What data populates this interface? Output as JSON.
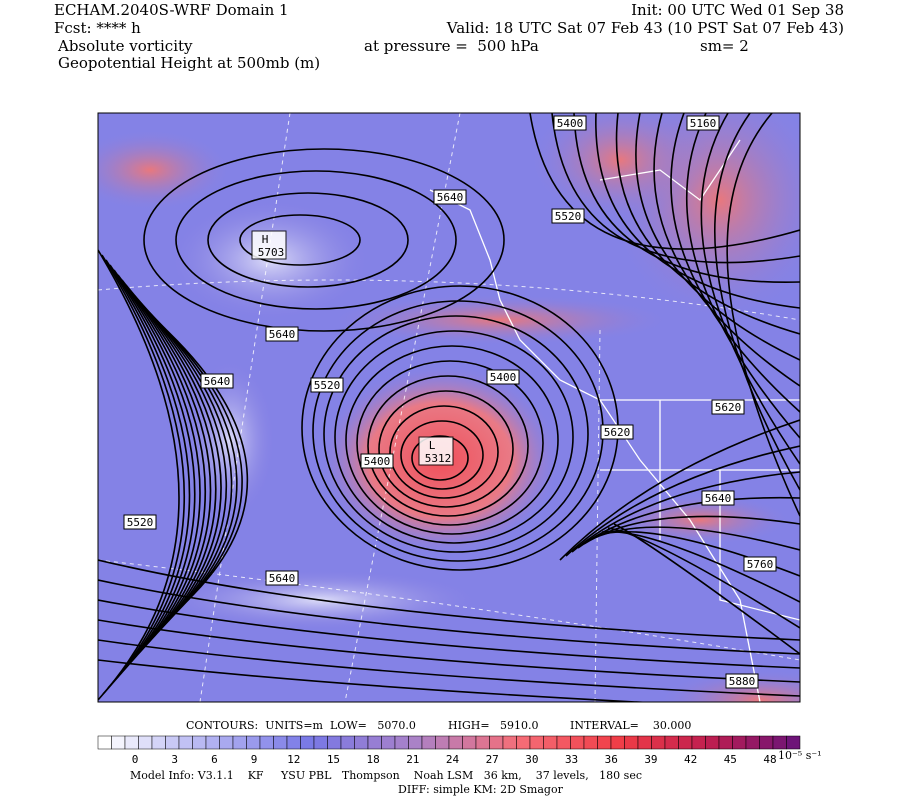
{
  "header": {
    "model": "ECHAM.2040S-WRF Domain 1",
    "init": "Init: 00 UTC Wed 01 Sep 38",
    "fcst": "Fcst: **** h",
    "valid": "Valid: 18 UTC Sat 07 Feb 43 (10 PST Sat 07 Feb 43)",
    "field": "Absolute vorticity",
    "pressure": "at pressure =  500 hPa",
    "smoothing": "sm= 2",
    "contour_field": "Geopotential Height at 500mb (m)"
  },
  "contour_labels": [
    "5400",
    "5160",
    "5640",
    "5520",
    "H",
    "5703",
    "5640",
    "5640",
    "5520",
    "5400",
    "5620",
    "5620",
    "L",
    "5312",
    "5400",
    "5640",
    "5520",
    "5760",
    "5640",
    "5880"
  ],
  "colorbar": {
    "ticks": [
      0,
      3,
      6,
      9,
      12,
      15,
      18,
      21,
      24,
      27,
      30,
      33,
      36,
      39,
      42,
      45,
      48
    ],
    "units": "10⁻⁵ s⁻¹"
  },
  "footer": {
    "contours": {
      "units": "CONTOURS:  UNITS=m",
      "low": "LOW=   5070.0",
      "high": "HIGH=   5910.0",
      "interval": "INTERVAL=    30.000"
    },
    "model_info": "Model Info: V3.1.1    KF     YSU PBL   Thompson    Noah LSM   36 km,    37 levels,   180 sec",
    "diff": "DIFF: simple KM: 2D Smagor"
  }
}
